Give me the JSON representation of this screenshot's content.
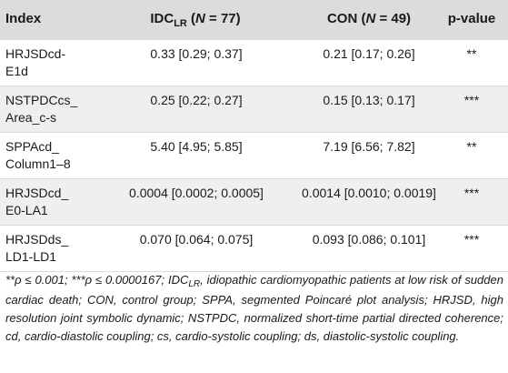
{
  "header": {
    "index": "Index",
    "idc_main": "IDC",
    "idc_sub": "LR",
    "idc_n_open": " (",
    "idc_n": "N",
    "idc_n_val": " = 77)",
    "con_main": "CON (",
    "con_n": "N",
    "con_n_val": " = 49)",
    "p": "p-value"
  },
  "rows": [
    {
      "index_line1": "HRJSDcd-",
      "index_line2": "E1d",
      "idc": "0.33 [0.29; 0.37]",
      "con": "0.21 [0.17; 0.26]",
      "p": "**"
    },
    {
      "index_line1": "NSTPDCcs_",
      "index_line2": "Area_c-s",
      "idc": "0.25 [0.22; 0.27]",
      "con": "0.15 [0.13; 0.17]",
      "p": "***"
    },
    {
      "index_line1": "SPPAcd_",
      "index_line2": "Column1–8",
      "idc": "5.40 [4.95; 5.85]",
      "con": "7.19 [6.56; 7.82]",
      "p": "**"
    },
    {
      "index_line1": "HRJSDcd_",
      "index_line2": "E0-LA1",
      "idc": "0.0004 [0.0002; 0.0005]",
      "con": "0.0014 [0.0010; 0.0019]",
      "p": "***"
    },
    {
      "index_line1": "HRJSDds_",
      "index_line2": "LD1-LD1",
      "idc": "0.070 [0.064; 0.075]",
      "con": "0.093 [0.086; 0.101]",
      "p": "***"
    }
  ],
  "footnote": {
    "part1": "**ρ ≤ 0.001; ***ρ ≤ 0.0000167; IDC",
    "sub": "LR",
    "part2": ", idiopathic cardiomyopathic patients at low risk of sudden cardiac death; CON, control group; SPPA, segmented Poincaré plot analysis; HRJSD, high resolution joint symbolic dynamic; NSTPDC, normalized short-time partial directed coherence; cd, cardio-diastolic coupling; cs, cardio-systolic coupling; ds, diastolic-systolic coupling."
  }
}
